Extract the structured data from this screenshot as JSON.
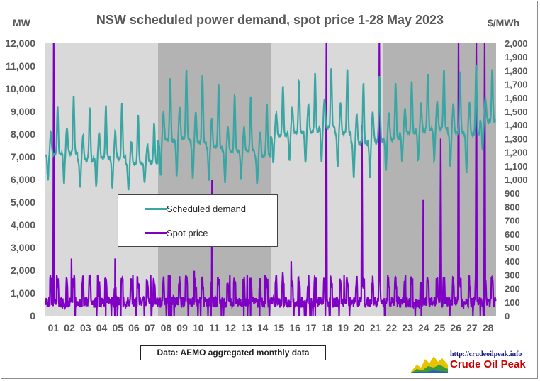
{
  "chart_data": {
    "type": "line",
    "title": "NSW scheduled power demand, spot price 1-28 May 2023",
    "left_axis_unit": "MW",
    "right_axis_unit": "$/MWh",
    "left_ylim": [
      0,
      12000
    ],
    "right_ylim": [
      0,
      2000
    ],
    "left_ticks": [
      "0",
      "1,000",
      "2,000",
      "3,000",
      "4,000",
      "5,000",
      "6,000",
      "7,000",
      "8,000",
      "9,000",
      "10,000",
      "11,000",
      "12,000"
    ],
    "right_ticks": [
      "0",
      "100",
      "200",
      "300",
      "400",
      "500",
      "600",
      "700",
      "800",
      "900",
      "1,000",
      "1,100",
      "1,200",
      "1,300",
      "1,400",
      "1,500",
      "1,600",
      "1,700",
      "1,800",
      "1,900",
      "2,000"
    ],
    "x_categories": [
      "01",
      "02",
      "03",
      "04",
      "05",
      "06",
      "07",
      "08",
      "09",
      "10",
      "11",
      "12",
      "13",
      "14",
      "15",
      "16",
      "17",
      "18",
      "19",
      "20",
      "21",
      "22",
      "23",
      "24",
      "25",
      "26",
      "27",
      "28"
    ],
    "shaded_weeks_days": [
      [
        8,
        14
      ],
      [
        22,
        28
      ]
    ],
    "series": [
      {
        "name": "Scheduled demand",
        "axis": "left",
        "color": "#3aa6a3",
        "daily_min": [
          6000,
          5800,
          5600,
          5700,
          5600,
          5500,
          5800,
          6200,
          6100,
          6000,
          5900,
          5900,
          6000,
          5800,
          6700,
          6800,
          6700,
          6800,
          6500,
          6100,
          6100,
          6400,
          6800,
          6800,
          6800,
          6600,
          6300,
          7300
        ],
        "daily_max": [
          9200,
          9700,
          9200,
          9300,
          9400,
          8900,
          8500,
          10500,
          10900,
          10600,
          10200,
          9700,
          9600,
          9400,
          10200,
          10400,
          10700,
          11000,
          10900,
          10300,
          10600,
          10300,
          10400,
          10700,
          10900,
          10800,
          11100,
          10900
        ]
      },
      {
        "name": "Spot price",
        "axis": "right",
        "color": "#7f00c4",
        "daily_peak": [
          2000,
          420,
          300,
          300,
          420,
          300,
          300,
          300,
          300,
          330,
          1000,
          300,
          300,
          300,
          320,
          400,
          300,
          2000,
          300,
          1400,
          2000,
          300,
          300,
          850,
          1300,
          2000,
          2000,
          2000
        ]
      }
    ],
    "source": "Data: AEMO aggregated monthly data"
  },
  "logo": {
    "url": "http://crudeoilpeak.info",
    "name": "Crude Oil Peak"
  }
}
